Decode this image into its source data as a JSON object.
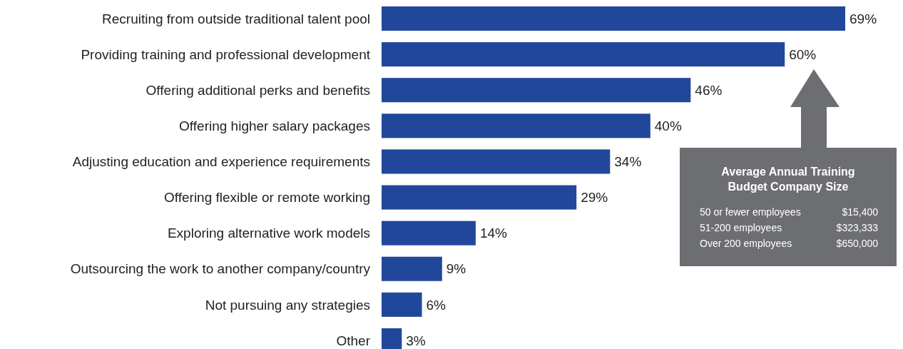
{
  "chart_data": {
    "type": "bar",
    "orientation": "horizontal",
    "categories": [
      "Recruiting from outside traditional talent pool",
      "Providing training and professional development",
      "Offering additional perks and benefits",
      "Offering higher salary packages",
      "Adjusting education and experience requirements",
      "Offering flexible or remote working",
      "Exploring alternative work models",
      "Outsourcing the work to another company/country",
      "Not pursuing any strategies",
      "Other"
    ],
    "values": [
      69,
      60,
      46,
      40,
      34,
      29,
      14,
      9,
      6,
      3
    ],
    "value_labels": [
      "69%",
      "60%",
      "46%",
      "40%",
      "34%",
      "29%",
      "14%",
      "9%",
      "6%",
      "3%"
    ],
    "color": "#21479a",
    "annotations": [
      "Average Annual Training Budget Company Size",
      "50 or fewer employees",
      "$15,400",
      "51-200 employees",
      "$323,333",
      "Over 200 employees",
      "$650,000"
    ]
  }
}
